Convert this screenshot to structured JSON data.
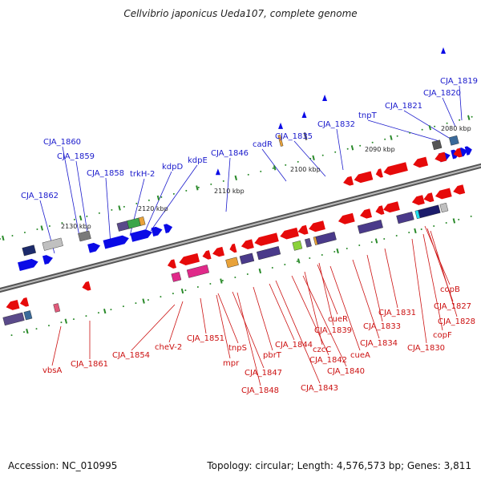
{
  "title": "Cellvibrio japonicus Ueda107, complete genome",
  "footer": {
    "accession": "Accession: NC_010995",
    "summary": "Topology: circular; Length: 4,576,573 bp; Genes: 3,811"
  },
  "colors": {
    "forward_gene": "#0a0ae6",
    "reverse_gene": "#e60a0a",
    "forward_label": "#1a1acc",
    "reverse_label": "#cc1111",
    "backbone": "#8c8c8c",
    "tick": "#2a8a2a"
  },
  "kbp_labels": [
    "2080 kbp",
    "2090 kbp",
    "2100 kbp",
    "2110 kbp",
    "2120 kbp",
    "2130 kbp"
  ],
  "top_labels": [
    "CJA_1819",
    "CJA_1820",
    "CJA_1821",
    "tnpT",
    "CJA_1832",
    "CJA_1835",
    "cadR",
    "CJA_1846",
    "kdpE",
    "kdpD",
    "trkH-2",
    "CJA_1858",
    "CJA_1859",
    "CJA_1860",
    "CJA_1862"
  ],
  "bottom_labels": [
    "copB",
    "CJA_1827",
    "CJA_1828",
    "copF",
    "CJA_1830",
    "CJA_1831",
    "CJA_1833",
    "CJA_1834",
    "cueA",
    "CJA_1839",
    "cueR",
    "CJA_1840",
    "czcC",
    "CJA_1842",
    "CJA_1843",
    "CJA_1844",
    "pbrT",
    "CJA_1848",
    "CJA_1847",
    "tnpS",
    "mpr",
    "CJA_1851",
    "cheV-2",
    "CJA_1854",
    "CJA_1861",
    "vbsA"
  ]
}
